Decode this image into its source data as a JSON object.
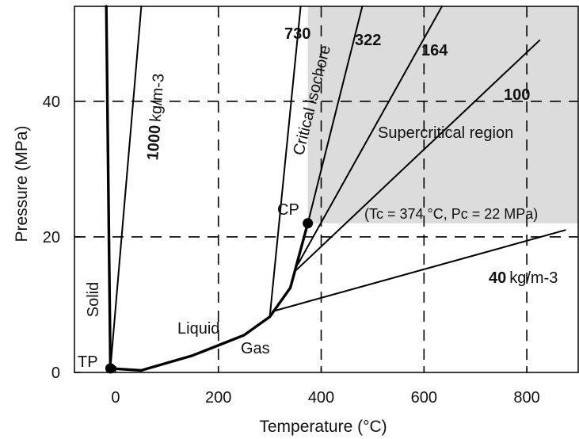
{
  "chart_data": {
    "type": "line",
    "xlabel": "Temperature (°C)",
    "ylabel": "Pressure (MPa)",
    "xlim": [
      -80,
      900
    ],
    "ylim": [
      0,
      54
    ],
    "x_ticks": [
      0,
      200,
      400,
      600,
      800
    ],
    "y_ticks": [
      0,
      20,
      40
    ],
    "grid": "dashed at x = 200, 400, 600, 800 and y = 20, 40",
    "colors": {
      "curves": "#000000",
      "supercritical_shade": "#dcdcdc"
    },
    "regions": {
      "solid": "Solid",
      "liquid": "Liquid",
      "gas": "Gas",
      "supercritical": "Supercritical region",
      "supercritical_bounds": {
        "x_min": 374,
        "y_min": 22
      }
    },
    "points": [
      {
        "name": "TP",
        "label": "TP",
        "x": -10,
        "y": 0.6
      },
      {
        "name": "CP",
        "label": "CP",
        "x": 374,
        "y": 22,
        "note": "(Tc = 374 °C, Pc = 22 MPa)"
      }
    ],
    "phase_boundaries": [
      {
        "name": "melting",
        "x": [
          -10,
          -18
        ],
        "y": [
          0.6,
          54
        ]
      },
      {
        "name": "vaporization",
        "x": [
          -10,
          50,
          150,
          250,
          300,
          340,
          374
        ],
        "y": [
          0.6,
          0.3,
          2.5,
          5.5,
          8.2,
          12.5,
          22
        ]
      }
    ],
    "isochores": [
      {
        "label": "1000",
        "unit": "kg/m-3",
        "x": [
          -10,
          50
        ],
        "y": [
          0.6,
          54
        ]
      },
      {
        "label": "730",
        "x": [
          300,
          360
        ],
        "y": [
          8.2,
          54
        ]
      },
      {
        "label": "322",
        "x": [
          374,
          480
        ],
        "y": [
          22,
          54
        ]
      },
      {
        "label": "164",
        "x": [
          355,
          635
        ],
        "y": [
          16,
          54
        ]
      },
      {
        "label": "100",
        "x": [
          350,
          825
        ],
        "y": [
          15,
          49
        ]
      },
      {
        "label": "40",
        "unit": "kg/m-3",
        "x": [
          305,
          875
        ],
        "y": [
          9,
          21
        ]
      }
    ],
    "critical_isochore_label": "Critical isochore"
  }
}
